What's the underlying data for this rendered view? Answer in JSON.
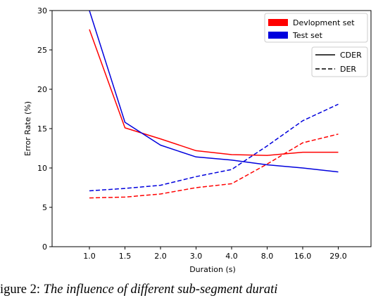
{
  "chart_data": {
    "type": "line",
    "categories": [
      "1.0",
      "1.5",
      "2.0",
      "3.0",
      "4.0",
      "8.0",
      "16.0",
      "29.0"
    ],
    "ylabel": "Error Rate (%)",
    "xlabel": "Duration (s)",
    "ylim": [
      0,
      30
    ],
    "yticks": [
      0,
      5,
      10,
      15,
      20,
      25,
      30
    ],
    "grid": false,
    "series": [
      {
        "name": "Devlopment set",
        "metric": "CDER",
        "color": "#ff0000",
        "dash": "solid",
        "values": [
          27.6,
          15.1,
          13.7,
          12.2,
          11.7,
          11.6,
          12.0,
          12.0
        ]
      },
      {
        "name": "Devlopment set",
        "metric": "DER",
        "color": "#ff0000",
        "dash": "dashed",
        "values": [
          6.2,
          6.3,
          6.7,
          7.5,
          8.0,
          10.5,
          13.2,
          14.3
        ]
      },
      {
        "name": "Test set",
        "metric": "CDER",
        "color": "#0000dd",
        "dash": "solid",
        "values": [
          30.0,
          15.8,
          12.9,
          11.4,
          11.0,
          10.4,
          10.0,
          9.5
        ]
      },
      {
        "name": "Test set",
        "metric": "DER",
        "color": "#0000dd",
        "dash": "dashed",
        "values": [
          7.1,
          7.4,
          7.8,
          8.9,
          9.8,
          12.8,
          16.0,
          18.1
        ]
      }
    ],
    "legend_sets": [
      {
        "label": "Devlopment set",
        "color": "#ff0000"
      },
      {
        "label": "Test set",
        "color": "#0000dd"
      }
    ],
    "legend_metrics": [
      {
        "label": "CDER",
        "dash": "solid"
      },
      {
        "label": "DER",
        "dash": "dashed"
      }
    ],
    "legend_position": "top-right"
  },
  "caption": {
    "label": "igure 2:",
    "text": "The influence of different sub-segment durati"
  }
}
